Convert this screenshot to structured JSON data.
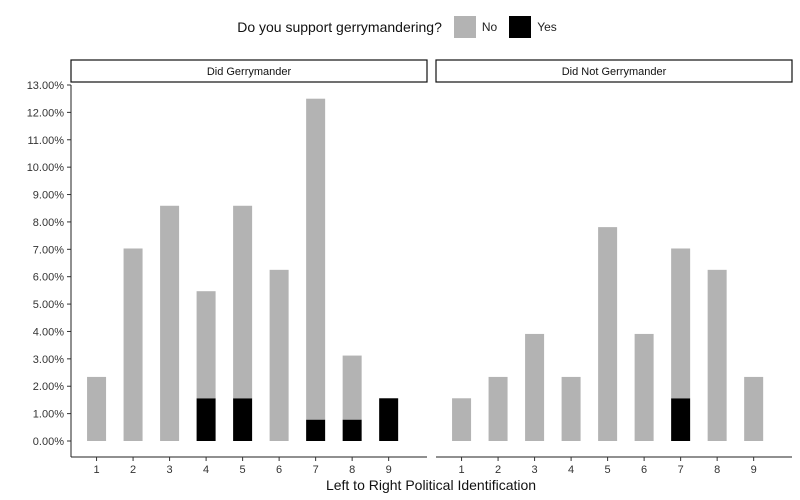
{
  "legend": {
    "title": "Do you support gerrymandering?",
    "items": [
      {
        "label": "No",
        "color": "#b3b3b3"
      },
      {
        "label": "Yes",
        "color": "#000000"
      }
    ]
  },
  "chart_data": {
    "type": "bar",
    "stacked": true,
    "xlabel": "Left to Right Political Identification",
    "ylabel": "",
    "ylim": [
      0,
      13
    ],
    "y_ticks": [
      "0.00%",
      "1.00%",
      "2.00%",
      "3.00%",
      "4.00%",
      "5.00%",
      "6.00%",
      "7.00%",
      "8.00%",
      "9.00%",
      "10.00%",
      "11.00%",
      "12.00%",
      "13.00%"
    ],
    "categories": [
      "1",
      "2",
      "3",
      "4",
      "5",
      "6",
      "7",
      "8",
      "9"
    ],
    "grid": false,
    "legend_position": "top",
    "panels": [
      {
        "title": "Did Gerrymander",
        "series": [
          {
            "name": "Yes",
            "values": [
              0,
              0,
              0,
              1.56,
              1.56,
              0,
              0.78,
              0.78,
              1.56
            ]
          },
          {
            "name": "No",
            "values": [
              2.34,
              7.03,
              8.59,
              3.91,
              7.03,
              6.25,
              11.72,
              2.34,
              0
            ]
          }
        ]
      },
      {
        "title": "Did Not Gerrymander",
        "series": [
          {
            "name": "Yes",
            "values": [
              0,
              0,
              0,
              0,
              0,
              0,
              1.56,
              0,
              0
            ]
          },
          {
            "name": "No",
            "values": [
              1.56,
              2.34,
              3.91,
              2.34,
              7.81,
              3.91,
              5.47,
              6.25,
              2.34
            ]
          }
        ]
      }
    ]
  }
}
